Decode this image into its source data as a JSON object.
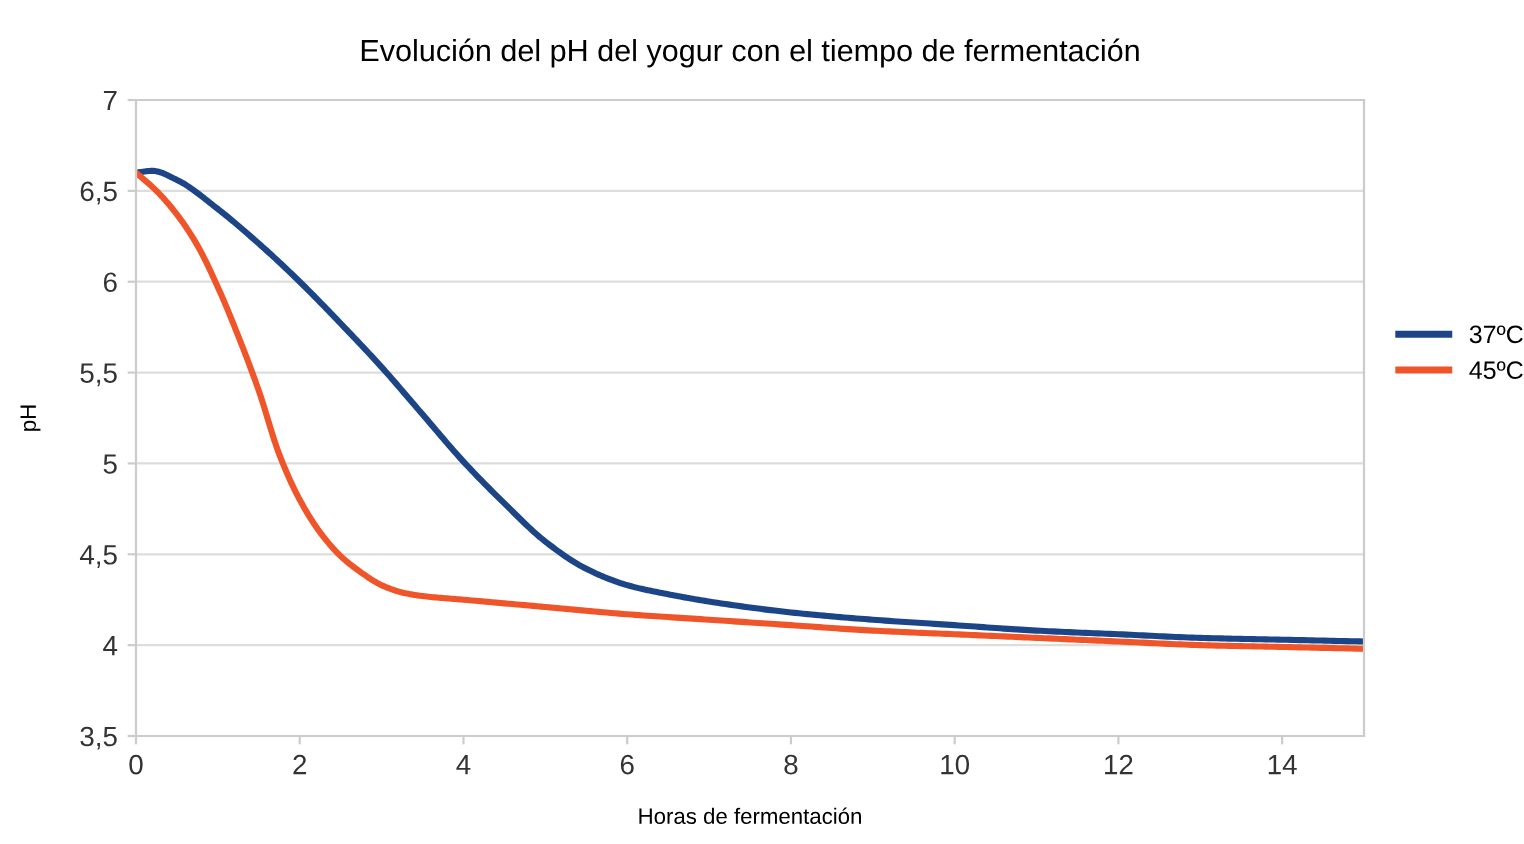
{
  "chart_data": {
    "type": "line",
    "title": "Evolución del pH del yogur con el tiempo de fermentación",
    "xlabel": "Horas de fermentación",
    "ylabel": "pH",
    "xlim": [
      0,
      15
    ],
    "xticks": [
      0,
      2,
      4,
      6,
      8,
      10,
      12,
      14
    ],
    "ylim": [
      3.5,
      7
    ],
    "yticks": [
      {
        "value": 3.5,
        "label": "3,5"
      },
      4,
      {
        "value": 4.5,
        "label": "4,5"
      },
      5,
      {
        "value": 5.5,
        "label": "5,5"
      },
      6,
      {
        "value": 6.5,
        "label": "6,5"
      },
      7
    ],
    "grid": "y",
    "legend": "right",
    "marker": "none",
    "line_style": "solid",
    "series": [
      {
        "name": "37ºC",
        "color": "#1c4587",
        "x": [
          0,
          0.2,
          0.5,
          1,
          1.5,
          2,
          2.5,
          3,
          3.5,
          4,
          4.5,
          5,
          5.5,
          6,
          6.5,
          7,
          8,
          9,
          10,
          11,
          12,
          13,
          14,
          15
        ],
        "values": [
          6.6,
          6.61,
          6.56,
          6.4,
          6.21,
          6.0,
          5.77,
          5.53,
          5.27,
          5.01,
          4.78,
          4.57,
          4.42,
          4.33,
          4.28,
          4.24,
          4.18,
          4.14,
          4.11,
          4.08,
          4.06,
          4.04,
          4.03,
          4.02
        ]
      },
      {
        "name": "45ºC",
        "color": "#f0552a",
        "x": [
          0,
          0.25,
          0.5,
          0.75,
          1,
          1.25,
          1.5,
          1.75,
          2,
          2.25,
          2.5,
          2.75,
          3,
          3.25,
          3.5,
          4,
          5,
          6,
          7,
          8,
          9,
          10,
          11,
          12,
          13,
          14,
          15
        ],
        "values": [
          6.6,
          6.5,
          6.37,
          6.2,
          5.97,
          5.7,
          5.4,
          5.05,
          4.8,
          4.62,
          4.49,
          4.4,
          4.33,
          4.29,
          4.27,
          4.25,
          4.21,
          4.17,
          4.14,
          4.11,
          4.08,
          4.06,
          4.04,
          4.02,
          4.0,
          3.99,
          3.98
        ]
      }
    ]
  }
}
